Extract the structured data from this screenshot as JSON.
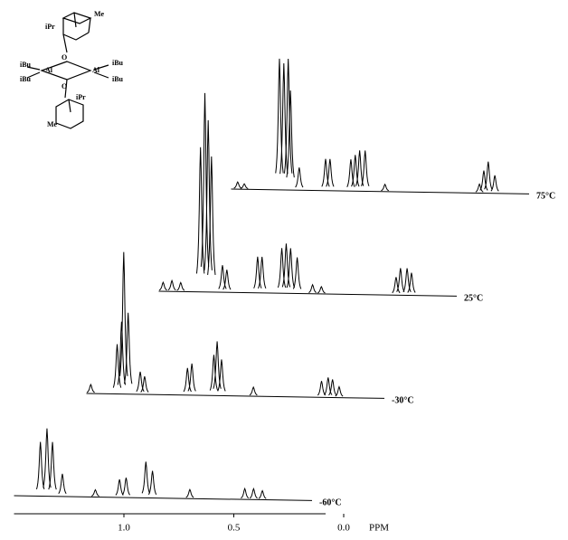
{
  "chart_data": {
    "type": "spectra",
    "xlabel": "PPM",
    "xlim": [
      1.5,
      0.0
    ],
    "xticks": [
      {
        "value": 1.0,
        "label": "1.0"
      },
      0.5,
      {
        "value": 0.0,
        "label": "0.0"
      }
    ],
    "series": [
      {
        "name": "-60°C",
        "x": [
          1.38,
          1.35,
          1.325,
          1.28,
          1.13,
          1.02,
          0.99,
          0.9,
          0.87,
          0.7,
          0.45,
          0.41,
          0.37
        ],
        "values": [
          60,
          75,
          60,
          25,
          8,
          20,
          22,
          40,
          30,
          10,
          12,
          12,
          10
        ]
      },
      {
        "name": "-30°C",
        "x": [
          1.48,
          1.36,
          1.34,
          1.33,
          1.31,
          1.255,
          1.235,
          1.04,
          1.02,
          0.92,
          0.905,
          0.885,
          0.74,
          0.43,
          0.4,
          0.38,
          0.35
        ],
        "values": [
          10,
          55,
          80,
          157,
          90,
          25,
          20,
          30,
          35,
          45,
          60,
          40,
          10,
          18,
          22,
          20,
          12
        ]
      },
      {
        "name": "25°C",
        "x": [
          1.48,
          1.44,
          1.4,
          1.31,
          1.29,
          1.275,
          1.26,
          1.21,
          1.19,
          1.05,
          1.03,
          0.94,
          0.92,
          0.9,
          0.87,
          0.8,
          0.76,
          0.42,
          0.4,
          0.37,
          0.35
        ],
        "values": [
          10,
          12,
          10,
          160,
          220,
          190,
          150,
          30,
          25,
          40,
          40,
          50,
          55,
          50,
          40,
          10,
          8,
          20,
          30,
          30,
          25
        ]
      },
      {
        "name": "75°C",
        "x": [
          1.47,
          1.44,
          1.28,
          1.26,
          1.24,
          1.23,
          1.19,
          1.07,
          1.05,
          0.955,
          0.935,
          0.915,
          0.89,
          0.8,
          0.37,
          0.35,
          0.33,
          0.3
        ],
        "values": [
          8,
          6,
          145,
          140,
          145,
          110,
          25,
          35,
          35,
          35,
          40,
          45,
          45,
          8,
          10,
          25,
          35,
          20
        ]
      }
    ]
  },
  "structure": {
    "labels": [
      "Me",
      "iPr",
      "iBu",
      "Al",
      "O",
      "Al",
      "iBu",
      "iBu",
      "O",
      "iBu",
      "iPr",
      "Me"
    ]
  }
}
